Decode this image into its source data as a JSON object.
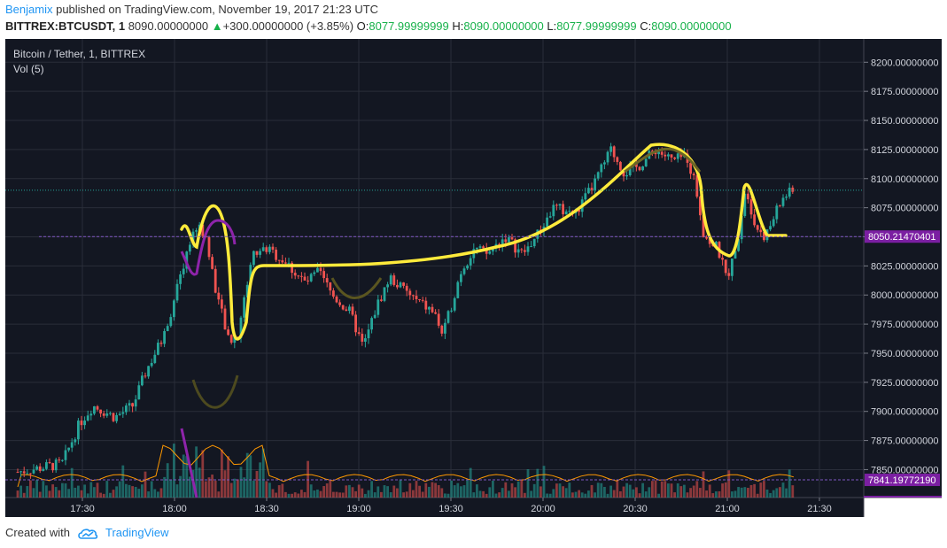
{
  "header": {
    "author": "Benjamix",
    "published_text": "published on TradingView.com, November 19, 2017 21:23 UTC",
    "symbol": "BITTREX:BTCUSDT, 1",
    "last": "8090.00000000",
    "change_arrow": "▲",
    "change": "+300.00000000 (+3.85%)",
    "o_label": "O:",
    "o_value": "8077.99999999",
    "h_label": "H:",
    "h_value": "8090.00000000",
    "l_label": "L:",
    "l_value": "8077.99999999",
    "c_label": "C:",
    "c_value": "8090.00000000"
  },
  "legend": {
    "title": "Bitcoin / Tether, 1, BITTREX",
    "volume": "Vol (5)"
  },
  "price_axis": {
    "ticks": [
      "8200.00000000",
      "8175.00000000",
      "8150.00000000",
      "8125.00000000",
      "8100.00000000",
      "8075.00000000",
      "8050.00000000",
      "8025.00000000",
      "8000.00000000",
      "7975.00000000",
      "7950.00000000",
      "7925.00000000",
      "7900.00000000",
      "7875.00000000",
      "7850.00000000"
    ],
    "tick_values": [
      8200,
      8175,
      8150,
      8125,
      8100,
      8075,
      8050,
      8025,
      8000,
      7975,
      7950,
      7925,
      7900,
      7875,
      7850
    ],
    "range": [
      7826,
      8220
    ],
    "marker_values": [
      8050.21470401,
      7841.1977219
    ],
    "marker_label_1": "8050.21470401",
    "marker_label_2": "7841.19772190",
    "last_price_value": 8090
  },
  "time_axis": {
    "ticks": [
      "17:30",
      "18:00",
      "18:30",
      "19:00",
      "19:30",
      "20:00",
      "20:30",
      "21:00",
      "21:30"
    ]
  },
  "chart_data": {
    "type": "candlestick",
    "symbol": "BTCUSDT",
    "exchange": "BITTREX",
    "interval": "1",
    "time_points": [
      "17:18",
      "17:30",
      "17:35",
      "17:45",
      "17:55",
      "18:00",
      "18:03",
      "18:06",
      "18:10",
      "18:14",
      "18:17",
      "18:20",
      "18:25",
      "18:30",
      "18:40",
      "18:50",
      "18:55",
      "19:00",
      "19:05",
      "19:10",
      "19:15",
      "19:20",
      "19:25",
      "19:30",
      "19:35",
      "19:45",
      "19:55",
      "20:00",
      "20:05",
      "20:10",
      "20:15",
      "20:20",
      "20:25",
      "20:30",
      "20:35",
      "20:40",
      "20:45",
      "20:50",
      "20:55",
      "21:00",
      "21:05",
      "21:08",
      "21:12",
      "21:15",
      "21:19"
    ],
    "close_approx": [
      7850,
      7890,
      7900,
      7895,
      7905,
      7955,
      8005,
      8040,
      8060,
      8045,
      8000,
      7960,
      7965,
      8035,
      8025,
      8000,
      8005,
      7980,
      7960,
      7995,
      8020,
      7990,
      7970,
      7990,
      8030,
      8045,
      8050,
      8040,
      8065,
      8085,
      8095,
      8120,
      8110,
      8115,
      8125,
      8120,
      8130,
      8105,
      8060,
      8030,
      8050,
      8095,
      8060,
      8075,
      8090
    ],
    "volume_series": "Vol (5)",
    "annotations": [
      {
        "type": "freehand",
        "color": "#ffeb3b",
        "description": "cup-and-handle drawing"
      },
      {
        "type": "freehand",
        "color": "#9c27b0",
        "description": "small arc near 18:05"
      },
      {
        "type": "horizontal_line",
        "color": "#7b1fa2",
        "value": 8050.21470401
      },
      {
        "type": "horizontal_line",
        "color": "#7b1fa2",
        "value": 7841.1977219
      }
    ]
  },
  "colors": {
    "background": "#131722",
    "grid": "#2a2e39",
    "up": "#26a69a",
    "down": "#ef5350",
    "drawing_yellow": "#ffeb3b",
    "drawing_purple": "#8e24aa",
    "marker_bg": "#7b1fa2",
    "brand": "#2196f3"
  },
  "footer": {
    "created_with": "Created with",
    "brand": "TradingView",
    "logo_icon": "tradingview-cloud-icon"
  }
}
